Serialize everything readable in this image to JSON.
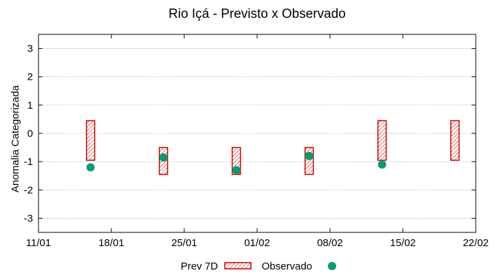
{
  "chart_data": {
    "type": "boxes-and-points",
    "title": "Rio Içá - Previsto x Observado",
    "xlabel": "",
    "ylabel": "Anomalia Categorizada",
    "xlim": [
      "11/01",
      "22/02"
    ],
    "x_ticks": [
      "11/01",
      "18/01",
      "25/01",
      "01/02",
      "08/02",
      "15/02",
      "22/02"
    ],
    "ylim": [
      -3.5,
      3.5
    ],
    "y_ticks": [
      "-3",
      "-2",
      "-1",
      "0",
      "1",
      "2",
      "3"
    ],
    "grid": true,
    "colors": {
      "forecast_stroke": "#cc0000",
      "observed_fill": "#009e73"
    },
    "legend": {
      "position": "bottom",
      "entries": [
        "Prev 7D",
        "Observado"
      ]
    },
    "forecast": {
      "name": "Prev 7D",
      "boxes": [
        {
          "day": 5,
          "low": -0.95,
          "high": 0.45
        },
        {
          "day": 12,
          "low": -1.45,
          "high": -0.5
        },
        {
          "day": 19,
          "low": -1.45,
          "high": -0.5
        },
        {
          "day": 26,
          "low": -1.45,
          "high": -0.5
        },
        {
          "day": 33,
          "low": -0.95,
          "high": 0.45
        },
        {
          "day": 40,
          "low": -0.95,
          "high": 0.45
        }
      ]
    },
    "observed": {
      "name": "Observado",
      "points": [
        {
          "day": 5,
          "value": -1.2
        },
        {
          "day": 12,
          "value": -0.85
        },
        {
          "day": 19,
          "value": -1.3
        },
        {
          "day": 26,
          "value": -0.8
        },
        {
          "day": 33,
          "value": -1.1
        }
      ]
    }
  }
}
